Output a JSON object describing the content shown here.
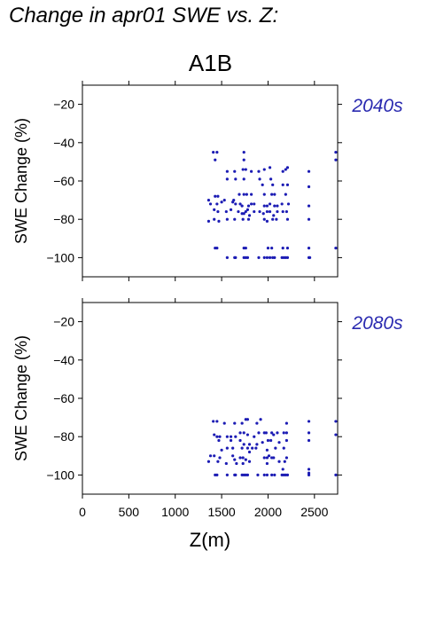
{
  "page": {
    "title": "Change in apr01 SWE vs. Z:",
    "scenario": "A1B",
    "xlabel": "Z(m)"
  },
  "colors": {
    "points": "#1c1cb4",
    "period_label": "#2a2ab0",
    "axis": "#000000"
  },
  "chart_data": [
    {
      "type": "scatter",
      "title": "2040s",
      "xlabel": "",
      "ylabel": "SWE Change (%)",
      "xlim": [
        0,
        2750
      ],
      "ylim": [
        -110,
        -10
      ],
      "xticks": [
        0,
        500,
        1000,
        1500,
        2000,
        2500
      ],
      "yticks": [
        -20,
        -40,
        -60,
        -80,
        -100
      ],
      "show_x_tick_labels": false,
      "grid": false,
      "points": [
        [
          1410,
          -45
        ],
        [
          1430,
          -49
        ],
        [
          1450,
          -45
        ],
        [
          1740,
          -45
        ],
        [
          1740,
          -49
        ],
        [
          2730,
          -45
        ],
        [
          2730,
          -49
        ],
        [
          1560,
          -55
        ],
        [
          1640,
          -55
        ],
        [
          1730,
          -54
        ],
        [
          1760,
          -54
        ],
        [
          1820,
          -55
        ],
        [
          1900,
          -55
        ],
        [
          1960,
          -54
        ],
        [
          2020,
          -53
        ],
        [
          2160,
          -55
        ],
        [
          2190,
          -54
        ],
        [
          2210,
          -53
        ],
        [
          2440,
          -55
        ],
        [
          1560,
          -59
        ],
        [
          1650,
          -59
        ],
        [
          1740,
          -59
        ],
        [
          1910,
          -59
        ],
        [
          1940,
          -62
        ],
        [
          2030,
          -59
        ],
        [
          2050,
          -62
        ],
        [
          2160,
          -62
        ],
        [
          2210,
          -62
        ],
        [
          2440,
          -63
        ],
        [
          1430,
          -68
        ],
        [
          1460,
          -68
        ],
        [
          1530,
          -70
        ],
        [
          1630,
          -70
        ],
        [
          1690,
          -67
        ],
        [
          1740,
          -67
        ],
        [
          1770,
          -67
        ],
        [
          1820,
          -67
        ],
        [
          1960,
          -67
        ],
        [
          2040,
          -67
        ],
        [
          2070,
          -67
        ],
        [
          2190,
          -67
        ],
        [
          1360,
          -70
        ],
        [
          1380,
          -72
        ],
        [
          1450,
          -72
        ],
        [
          1500,
          -71
        ],
        [
          1620,
          -71
        ],
        [
          1650,
          -72
        ],
        [
          1700,
          -72
        ],
        [
          1720,
          -73
        ],
        [
          1790,
          -73
        ],
        [
          1820,
          -72
        ],
        [
          1850,
          -72
        ],
        [
          1960,
          -73
        ],
        [
          1990,
          -73
        ],
        [
          2020,
          -72
        ],
        [
          2070,
          -73
        ],
        [
          2100,
          -73
        ],
        [
          2150,
          -72
        ],
        [
          2220,
          -72
        ],
        [
          2440,
          -73
        ],
        [
          1420,
          -75
        ],
        [
          1460,
          -76
        ],
        [
          1550,
          -76
        ],
        [
          1600,
          -75
        ],
        [
          1680,
          -76
        ],
        [
          1720,
          -77
        ],
        [
          1740,
          -77
        ],
        [
          1760,
          -76
        ],
        [
          1780,
          -75
        ],
        [
          1800,
          -78
        ],
        [
          1850,
          -76
        ],
        [
          1910,
          -76
        ],
        [
          1950,
          -77
        ],
        [
          1990,
          -76
        ],
        [
          2020,
          -76
        ],
        [
          2060,
          -78
        ],
        [
          2100,
          -76
        ],
        [
          2160,
          -76
        ],
        [
          2200,
          -76
        ],
        [
          1360,
          -81
        ],
        [
          1420,
          -80
        ],
        [
          1470,
          -81
        ],
        [
          1560,
          -80
        ],
        [
          1640,
          -80
        ],
        [
          1730,
          -80
        ],
        [
          1790,
          -80
        ],
        [
          1960,
          -80
        ],
        [
          1990,
          -81
        ],
        [
          2050,
          -80
        ],
        [
          2090,
          -80
        ],
        [
          2210,
          -80
        ],
        [
          2440,
          -80
        ],
        [
          1430,
          -95
        ],
        [
          1450,
          -95
        ],
        [
          1740,
          -95
        ],
        [
          1760,
          -95
        ],
        [
          2000,
          -95
        ],
        [
          2040,
          -95
        ],
        [
          2160,
          -95
        ],
        [
          2210,
          -95
        ],
        [
          2440,
          -95
        ],
        [
          2730,
          -95
        ],
        [
          1560,
          -100
        ],
        [
          1640,
          -100
        ],
        [
          1650,
          -100
        ],
        [
          1740,
          -100
        ],
        [
          1760,
          -100
        ],
        [
          1780,
          -100
        ],
        [
          1900,
          -100
        ],
        [
          1960,
          -100
        ],
        [
          1990,
          -100
        ],
        [
          2020,
          -100
        ],
        [
          2050,
          -100
        ],
        [
          2070,
          -100
        ],
        [
          2150,
          -100
        ],
        [
          2170,
          -100
        ],
        [
          2190,
          -100
        ],
        [
          2210,
          -100
        ],
        [
          2440,
          -100
        ],
        [
          2450,
          -100
        ]
      ]
    },
    {
      "type": "scatter",
      "title": "2080s",
      "xlabel": "Z(m)",
      "ylabel": "SWE Change (%)",
      "xlim": [
        0,
        2750
      ],
      "ylim": [
        -110,
        -10
      ],
      "xticks": [
        0,
        500,
        1000,
        1500,
        2000,
        2500
      ],
      "yticks": [
        -20,
        -40,
        -60,
        -80,
        -100
      ],
      "show_x_tick_labels": true,
      "grid": false,
      "points": [
        [
          1410,
          -72
        ],
        [
          1450,
          -72
        ],
        [
          1530,
          -73
        ],
        [
          1640,
          -73
        ],
        [
          1720,
          -73
        ],
        [
          1760,
          -71
        ],
        [
          1780,
          -71
        ],
        [
          1880,
          -73
        ],
        [
          1920,
          -71
        ],
        [
          2200,
          -73
        ],
        [
          2440,
          -72
        ],
        [
          2730,
          -72
        ],
        [
          1420,
          -79
        ],
        [
          1450,
          -80
        ],
        [
          1480,
          -80
        ],
        [
          1560,
          -80
        ],
        [
          1600,
          -80
        ],
        [
          1650,
          -80
        ],
        [
          1700,
          -78
        ],
        [
          1740,
          -78
        ],
        [
          1780,
          -79
        ],
        [
          1850,
          -80
        ],
        [
          1900,
          -78
        ],
        [
          1960,
          -78
        ],
        [
          1980,
          -78
        ],
        [
          2040,
          -78
        ],
        [
          2060,
          -79
        ],
        [
          2100,
          -78
        ],
        [
          2170,
          -78
        ],
        [
          2200,
          -78
        ],
        [
          2440,
          -78
        ],
        [
          2730,
          -79
        ],
        [
          1470,
          -82
        ],
        [
          1600,
          -82
        ],
        [
          1700,
          -82
        ],
        [
          1740,
          -84
        ],
        [
          1800,
          -84
        ],
        [
          1880,
          -84
        ],
        [
          1940,
          -83
        ],
        [
          2000,
          -82
        ],
        [
          2030,
          -82
        ],
        [
          2120,
          -83
        ],
        [
          2200,
          -82
        ],
        [
          2440,
          -82
        ],
        [
          1500,
          -87
        ],
        [
          1560,
          -86
        ],
        [
          1620,
          -86
        ],
        [
          1720,
          -86
        ],
        [
          1780,
          -86
        ],
        [
          1800,
          -88
        ],
        [
          1830,
          -86
        ],
        [
          1870,
          -86
        ],
        [
          1990,
          -87
        ],
        [
          2080,
          -86
        ],
        [
          2170,
          -86
        ],
        [
          1380,
          -90
        ],
        [
          1420,
          -90
        ],
        [
          1480,
          -91
        ],
        [
          1620,
          -90
        ],
        [
          1640,
          -92
        ],
        [
          1700,
          -91
        ],
        [
          1730,
          -91
        ],
        [
          1760,
          -92
        ],
        [
          1960,
          -91
        ],
        [
          1990,
          -91
        ],
        [
          2010,
          -90
        ],
        [
          2040,
          -91
        ],
        [
          2060,
          -91
        ],
        [
          2200,
          -91
        ],
        [
          1360,
          -93
        ],
        [
          1460,
          -93
        ],
        [
          1550,
          -94
        ],
        [
          1660,
          -94
        ],
        [
          1730,
          -94
        ],
        [
          1800,
          -93
        ],
        [
          1990,
          -94
        ],
        [
          2120,
          -93
        ],
        [
          2180,
          -93
        ],
        [
          2160,
          -97
        ],
        [
          2440,
          -97
        ],
        [
          2440,
          -99
        ],
        [
          1430,
          -100
        ],
        [
          1450,
          -100
        ],
        [
          1560,
          -100
        ],
        [
          1640,
          -100
        ],
        [
          1650,
          -100
        ],
        [
          1720,
          -100
        ],
        [
          1740,
          -100
        ],
        [
          1760,
          -100
        ],
        [
          1780,
          -100
        ],
        [
          1890,
          -100
        ],
        [
          1960,
          -100
        ],
        [
          1990,
          -100
        ],
        [
          2040,
          -100
        ],
        [
          2070,
          -100
        ],
        [
          2150,
          -100
        ],
        [
          2170,
          -100
        ],
        [
          2190,
          -100
        ],
        [
          2210,
          -100
        ],
        [
          2440,
          -100
        ],
        [
          2730,
          -100
        ]
      ]
    }
  ]
}
